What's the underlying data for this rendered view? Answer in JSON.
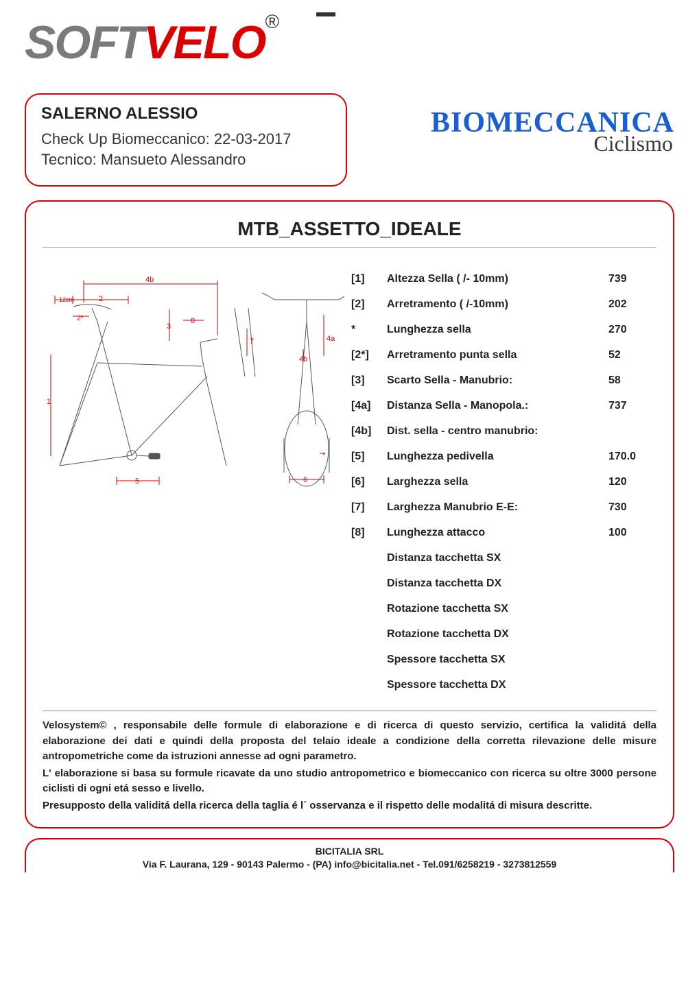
{
  "logo": {
    "part1": "SOFT",
    "part2": "VELO",
    "reg": "®"
  },
  "info": {
    "name": "SALERNO ALESSIO",
    "checkup_label": "Check Up Biomeccanico: ",
    "checkup_date": "22-03-2017",
    "tecnico_label": "Tecnico: ",
    "tecnico_name": "Mansueto Alessandro"
  },
  "brand": {
    "line1": "BIOMECCANICA",
    "line2": "Ciclismo"
  },
  "section_title": "MTB_ASSETTO_IDEALE",
  "measurements": [
    {
      "key": "[1]",
      "label": "Altezza Sella ( /- 10mm)",
      "value": "739"
    },
    {
      "key": "[2]",
      "label": "Arretramento ( /-10mm)",
      "value": "202"
    },
    {
      "key": "*",
      "label": "Lunghezza sella",
      "value": "270"
    },
    {
      "key": "[2*]",
      "label": "Arretramento punta sella",
      "value": "52"
    },
    {
      "key": "[3]",
      "label": "Scarto Sella - Manubrio:",
      "value": "58"
    },
    {
      "key": "[4a]",
      "label": "Distanza Sella - Manopola.:",
      "value": "737"
    },
    {
      "key": "[4b]",
      "label": "Dist. sella - centro manubrio:",
      "value": ""
    },
    {
      "key": "[5]",
      "label": "Lunghezza pedivella",
      "value": "170.0"
    },
    {
      "key": "[6]",
      "label": "Larghezza sella",
      "value": "120"
    },
    {
      "key": "[7]",
      "label": "Larghezza Manubrio E-E:",
      "value": "730"
    },
    {
      "key": "[8]",
      "label": "Lunghezza attacco",
      "value": "100"
    },
    {
      "key": "",
      "label": "Distanza tacchetta SX",
      "value": ""
    },
    {
      "key": "",
      "label": "Distanza tacchetta DX",
      "value": ""
    },
    {
      "key": "",
      "label": "Rotazione tacchetta SX",
      "value": ""
    },
    {
      "key": "",
      "label": "Rotazione tacchetta DX",
      "value": ""
    },
    {
      "key": "",
      "label": "Spessore tacchetta SX",
      "value": ""
    },
    {
      "key": "",
      "label": "Spessore tacchetta DX",
      "value": ""
    }
  ],
  "disclaimer": {
    "p1": "Velosystem© , responsabile delle formule di elaborazione e di ricerca di questo servizio, certifica la validitá della elaborazione dei dati e quindi della proposta del telaio ideale a condizione della corretta rilevazione delle misure antropometriche come da istruzioni annesse ad ogni parametro.",
    "p2": "L' elaborazione si basa su formule ricavate da uno studio antropometrico e biomeccanico con ricerca su oltre 3000 persone ciclisti di ogni etá sesso e livello.",
    "p3": "Presupposto della validitá della ricerca della taglia é l´ osservanza e il rispetto delle modalitá di misura descritte."
  },
  "footer": {
    "company": "BICITALIA SRL",
    "address": "Via F. Laurana, 129 - 90143 Palermo - (PA) info@bicitalia.net - Tel.091/6258219 - 3273812559"
  },
  "diagram": {
    "stroke": "#555555",
    "dim_color": "#d90000",
    "font_size": 11,
    "labels": {
      "l12cm": "12cm",
      "l1": "1",
      "l2": "2",
      "l2s": "2*",
      "l3": "3",
      "l4a": "4a",
      "l4b": "4b",
      "l4b2": "4b",
      "l5": "5",
      "l6": "6",
      "l7": "7",
      "l8": "8",
      "lstar": "*"
    }
  }
}
